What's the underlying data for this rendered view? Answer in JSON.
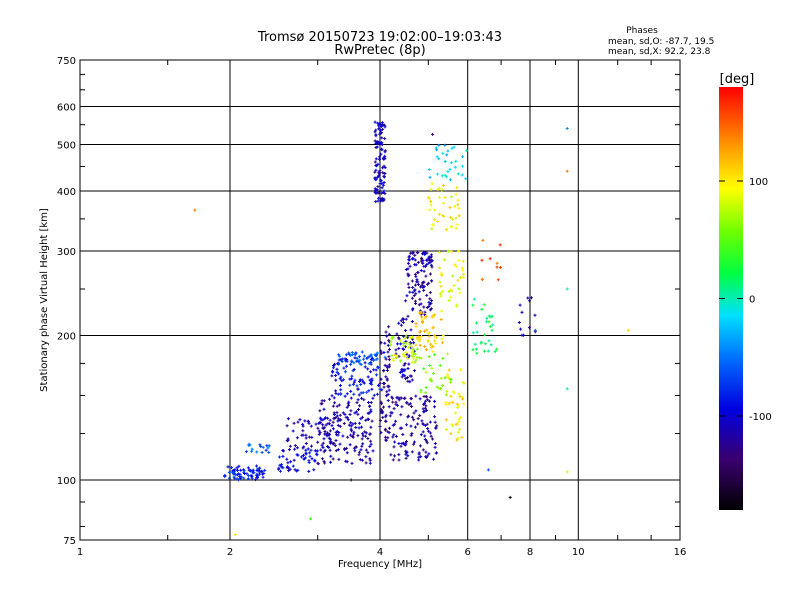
{
  "chart_data": {
    "type": "scatter",
    "title": "Tromsø 20150723 19:02:00–19:03:43",
    "subtitle": "RwPretec (8p)",
    "xlabel": "Frequency [MHz]",
    "ylabel": "Stationary phase Virtual Height [km]",
    "x_scale": "log",
    "y_scale": "log",
    "xlim": [
      1,
      16
    ],
    "ylim": [
      75,
      750
    ],
    "x_ticks": [
      1,
      2,
      4,
      6,
      8,
      10,
      16
    ],
    "y_ticks": [
      75,
      100,
      200,
      300,
      400,
      500,
      600,
      750
    ],
    "grid": true,
    "annotation": {
      "heading": "Phases",
      "line1": "mean, sd,O: -87.7, 19.5",
      "line2": "mean, sd,X:  92.2, 23.8"
    },
    "colorbar": {
      "label": "[deg]",
      "range": [
        -180,
        180
      ],
      "ticks": [
        {
          "value": 100,
          "label": "100"
        },
        {
          "value": 0,
          "label": "0"
        },
        {
          "value": -100,
          "label": "-100"
        }
      ]
    },
    "clusters": [
      {
        "x": [
          1.95,
          2.35
        ],
        "y": [
          100,
          107
        ],
        "phase": -85,
        "n": 70
      },
      {
        "x": [
          2.1,
          2.4
        ],
        "y": [
          114,
          119
        ],
        "phase": -60,
        "n": 16
      },
      {
        "x": [
          2.5,
          3.0
        ],
        "y": [
          104,
          118
        ],
        "phase": -95,
        "n": 55
      },
      {
        "x": [
          2.6,
          3.3
        ],
        "y": [
          115,
          135
        ],
        "phase": -110,
        "n": 55
      },
      {
        "x": [
          3.0,
          3.9
        ],
        "y": [
          108,
          150
        ],
        "phase": -115,
        "n": 170
      },
      {
        "x": [
          3.2,
          4.0
        ],
        "y": [
          150,
          180
        ],
        "phase": -90,
        "n": 90
      },
      {
        "x": [
          3.3,
          4.1
        ],
        "y": [
          174,
          185
        ],
        "phase": -60,
        "n": 45
      },
      {
        "x": [
          3.9,
          4.1
        ],
        "y": [
          380,
          560
        ],
        "phase": -105,
        "n": 110
      },
      {
        "x": [
          4.0,
          4.2
        ],
        "y": [
          120,
          210
        ],
        "phase": -120,
        "n": 70
      },
      {
        "x": [
          4.2,
          5.2
        ],
        "y": [
          110,
          150
        ],
        "phase": -120,
        "n": 130
      },
      {
        "x": [
          4.5,
          5.1
        ],
        "y": [
          220,
          300
        ],
        "phase": -115,
        "n": 120
      },
      {
        "x": [
          4.3,
          4.7
        ],
        "y": [
          160,
          220
        ],
        "phase": -110,
        "n": 60
      },
      {
        "x": [
          4.2,
          4.8
        ],
        "y": [
          175,
          200
        ],
        "phase": 80,
        "n": 45
      },
      {
        "x": [
          4.7,
          5.4
        ],
        "y": [
          185,
          225
        ],
        "phase": 110,
        "n": 50
      },
      {
        "x": [
          5.0,
          5.8
        ],
        "y": [
          330,
          420
        ],
        "phase": 95,
        "n": 40
      },
      {
        "x": [
          5.2,
          5.9
        ],
        "y": [
          230,
          300
        ],
        "phase": 90,
        "n": 35
      },
      {
        "x": [
          5.4,
          5.9
        ],
        "y": [
          120,
          170
        ],
        "phase": 100,
        "n": 40
      },
      {
        "x": [
          5.0,
          6.0
        ],
        "y": [
          420,
          500
        ],
        "phase": -20,
        "n": 30
      },
      {
        "x": [
          4.8,
          5.6
        ],
        "y": [
          150,
          185
        ],
        "phase": 60,
        "n": 30
      },
      {
        "x": [
          6.1,
          6.9
        ],
        "y": [
          180,
          240
        ],
        "phase": 20,
        "n": 30
      },
      {
        "x": [
          7.5,
          8.2
        ],
        "y": [
          200,
          240
        ],
        "phase": -110,
        "n": 12
      },
      {
        "x": [
          6.4,
          7.0
        ],
        "y": [
          260,
          320
        ],
        "phase": 150,
        "n": 10
      }
    ],
    "points": [
      {
        "x": 1.7,
        "y": 365,
        "phase": 140
      },
      {
        "x": 2.05,
        "y": 77,
        "phase": 100
      },
      {
        "x": 2.9,
        "y": 83,
        "phase": 40
      },
      {
        "x": 3.5,
        "y": 100,
        "phase": -170
      },
      {
        "x": 5.1,
        "y": 525,
        "phase": -130
      },
      {
        "x": 6.6,
        "y": 105,
        "phase": -60
      },
      {
        "x": 7.3,
        "y": 92,
        "phase": -170
      },
      {
        "x": 8.2,
        "y": 205,
        "phase": -60
      },
      {
        "x": 9.5,
        "y": 540,
        "phase": -40
      },
      {
        "x": 9.5,
        "y": 440,
        "phase": 140
      },
      {
        "x": 9.5,
        "y": 250,
        "phase": 0
      },
      {
        "x": 9.5,
        "y": 155,
        "phase": 0
      },
      {
        "x": 9.5,
        "y": 104,
        "phase": 80
      },
      {
        "x": 12.6,
        "y": 205,
        "phase": 110
      }
    ]
  }
}
